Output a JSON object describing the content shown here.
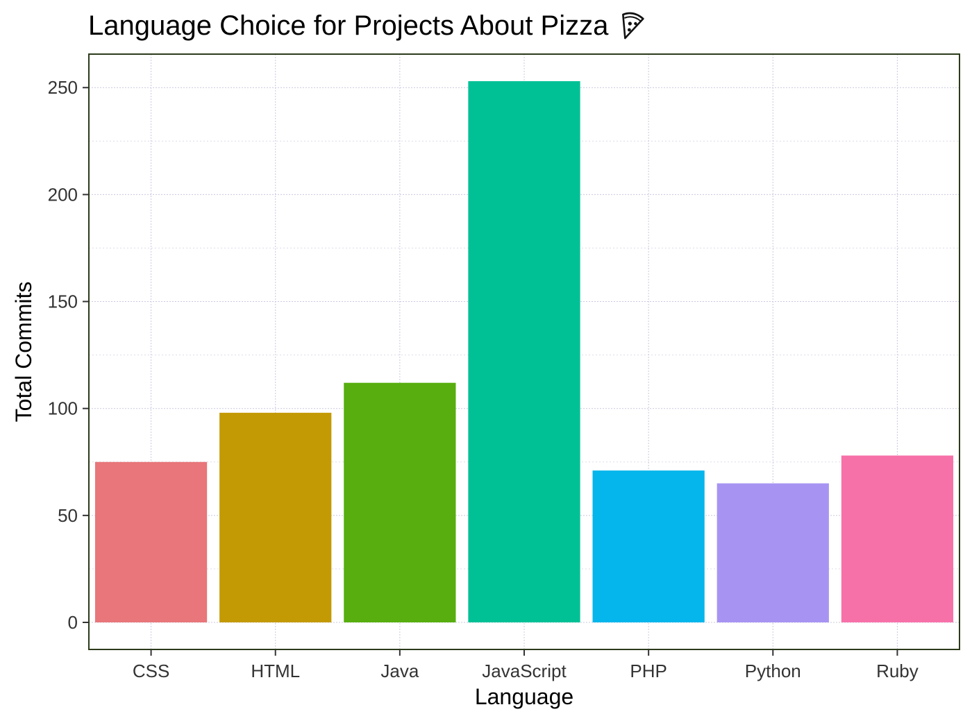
{
  "chart_data": {
    "type": "bar",
    "title": "Language Choice for Projects About Pizza",
    "title_icon": "pizza-slice-icon",
    "xlabel": "Language",
    "ylabel": "Total Commits",
    "categories": [
      "CSS",
      "HTML",
      "Java",
      "JavaScript",
      "PHP",
      "Python",
      "Ruby"
    ],
    "values": [
      75,
      98,
      112,
      253,
      71,
      65,
      78
    ],
    "colors": [
      "#E8767A",
      "#C49A04",
      "#57AE0E",
      "#00C195",
      "#04B6EC",
      "#A794F2",
      "#F771A9"
    ],
    "ylim": [
      -12.65,
      265.65
    ],
    "yticks": [
      0,
      50,
      100,
      150,
      200,
      250
    ],
    "ytick_labels": [
      "0",
      "50",
      "100",
      "150",
      "200",
      "250"
    ],
    "grid": true,
    "legend": "none",
    "panel_border_color": "#2c3a1a"
  }
}
